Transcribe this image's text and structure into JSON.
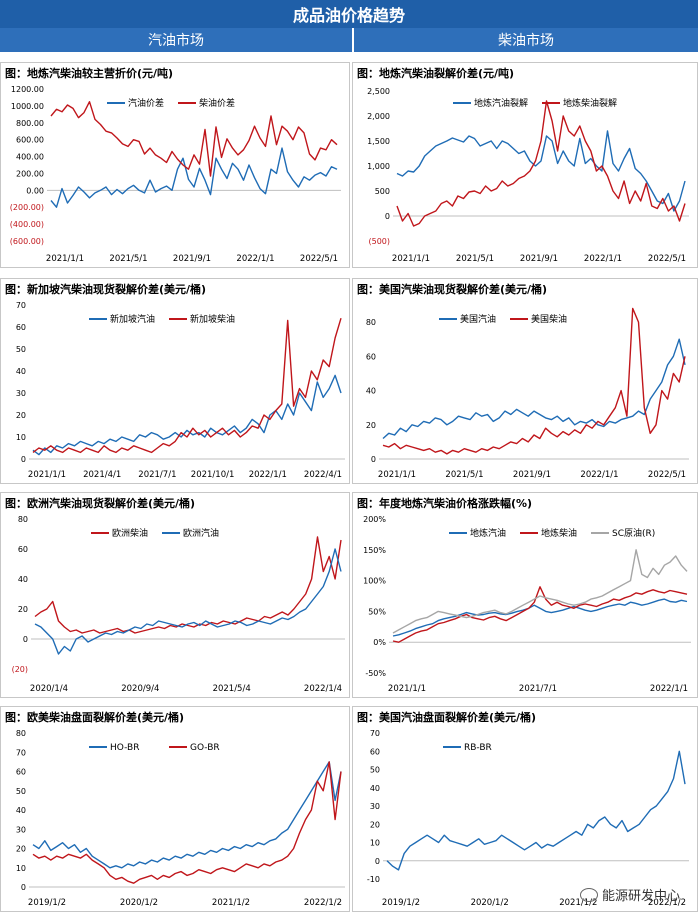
{
  "header": {
    "title": "成品油价格趋势",
    "left_column": "汽油市场",
    "right_column": "柴油市场"
  },
  "colors": {
    "banner": "#1f5fa8",
    "subheader": "#2e6fba",
    "blue": "#1f6cb5",
    "red": "#c0161b",
    "gray": "#a6a6a6"
  },
  "watermark": "能源研发中心",
  "chart_data": [
    {
      "type": "line",
      "title": "图：地炼汽柴油较主营折价(元/吨)",
      "x_ticks": [
        "2021/1/1",
        "2021/5/1",
        "2021/9/1",
        "2022/1/1",
        "2022/5/1"
      ],
      "y_ticks": [
        "1200.00",
        "1000.00",
        "800.00",
        "600.00",
        "400.00",
        "200.00",
        "0.00",
        "(200.00)",
        "(400.00)",
        "(600.00)"
      ],
      "ylim": [
        -600,
        1200
      ],
      "legend": "top",
      "series": [
        {
          "name": "汽油价差",
          "color": "#1f6cb5",
          "values": [
            -120,
            -200,
            20,
            -150,
            -60,
            40,
            -20,
            -90,
            -30,
            0,
            40,
            -50,
            10,
            -40,
            20,
            60,
            0,
            -30,
            120,
            -20,
            20,
            50,
            0,
            250,
            380,
            130,
            40,
            260,
            120,
            -50,
            380,
            250,
            140,
            320,
            250,
            120,
            300,
            150,
            20,
            -40,
            250,
            200,
            500,
            220,
            120,
            40,
            160,
            120,
            180,
            210,
            170,
            280,
            250
          ]
        },
        {
          "name": "柴油价差",
          "color": "#c0161b",
          "values": [
            880,
            960,
            930,
            1010,
            970,
            860,
            920,
            1050,
            840,
            780,
            700,
            680,
            620,
            550,
            520,
            600,
            580,
            430,
            500,
            420,
            380,
            330,
            460,
            370,
            300,
            250,
            420,
            310,
            720,
            170,
            750,
            390,
            610,
            500,
            420,
            480,
            590,
            760,
            620,
            520,
            880,
            540,
            760,
            700,
            600,
            750,
            680,
            430,
            360,
            500,
            480,
            600,
            540
          ]
        }
      ]
    },
    {
      "type": "line",
      "title": "图：地炼汽柴油裂解价差(元/吨)",
      "x_ticks": [
        "2021/1/1",
        "2021/5/1",
        "2021/9/1",
        "2022/1/1",
        "2022/5/1"
      ],
      "y_ticks": [
        "2,500",
        "2,000",
        "1,500",
        "1,000",
        "500",
        "0",
        "(500)"
      ],
      "ylim": [
        -500,
        2500
      ],
      "legend": "top",
      "series": [
        {
          "name": "地炼汽油裂解",
          "color": "#1f6cb5",
          "values": [
            850,
            800,
            900,
            880,
            1000,
            1200,
            1300,
            1400,
            1450,
            1500,
            1560,
            1520,
            1480,
            1600,
            1550,
            1400,
            1450,
            1500,
            1350,
            1500,
            1450,
            1350,
            1250,
            1300,
            1100,
            1000,
            1100,
            1600,
            1500,
            1050,
            1300,
            1100,
            1000,
            1550,
            1050,
            1150,
            1000,
            900,
            1700,
            1050,
            900,
            1150,
            1350,
            950,
            850,
            700,
            500,
            300,
            250,
            450,
            100,
            300,
            700
          ]
        },
        {
          "name": "地炼柴油裂解",
          "color": "#c0161b",
          "values": [
            200,
            -100,
            50,
            -200,
            -150,
            0,
            50,
            100,
            250,
            300,
            200,
            400,
            350,
            480,
            500,
            450,
            600,
            500,
            550,
            700,
            600,
            650,
            750,
            800,
            900,
            1100,
            1500,
            2300,
            1900,
            1300,
            2000,
            1700,
            1600,
            1800,
            1500,
            1300,
            900,
            1000,
            800,
            500,
            350,
            700,
            250,
            500,
            300,
            650,
            200,
            150,
            350,
            100,
            200,
            -100,
            250
          ]
        }
      ]
    },
    {
      "type": "line",
      "title": "图：新加坡汽柴油现货裂解价差(美元/桶)",
      "x_ticks": [
        "2021/1/1",
        "2021/4/1",
        "2021/7/1",
        "2021/10/1",
        "2022/1/1",
        "2022/4/1"
      ],
      "y_ticks": [
        "70",
        "60",
        "50",
        "40",
        "30",
        "20",
        "10",
        "0"
      ],
      "ylim": [
        0,
        70
      ],
      "legend": "top",
      "series": [
        {
          "name": "新加坡汽油",
          "color": "#1f6cb5",
          "values": [
            4,
            2,
            5,
            3,
            6,
            5,
            7,
            6,
            8,
            7,
            6,
            8,
            7,
            9,
            8,
            10,
            9,
            8,
            11,
            10,
            12,
            11,
            9,
            10,
            12,
            10,
            13,
            11,
            12,
            10,
            14,
            12,
            11,
            13,
            15,
            12,
            14,
            18,
            16,
            12,
            20,
            22,
            18,
            25,
            20,
            30,
            26,
            22,
            35,
            28,
            32,
            38,
            30
          ]
        },
        {
          "name": "新加坡柴油",
          "color": "#c0161b",
          "values": [
            3,
            5,
            4,
            6,
            4,
            3,
            5,
            4,
            3,
            5,
            4,
            3,
            6,
            4,
            3,
            5,
            4,
            6,
            5,
            4,
            3,
            5,
            7,
            6,
            8,
            12,
            10,
            14,
            11,
            13,
            10,
            12,
            14,
            11,
            13,
            10,
            12,
            15,
            14,
            20,
            18,
            22,
            25,
            63,
            24,
            32,
            28,
            40,
            36,
            45,
            42,
            55,
            64
          ]
        }
      ]
    },
    {
      "type": "line",
      "title": "图：美国汽柴油现货裂解价差(美元/桶)",
      "x_ticks": [
        "2021/1/1",
        "2021/5/1",
        "2021/9/1",
        "2022/1/1",
        "2022/5/1"
      ],
      "y_ticks": [
        "80",
        "60",
        "40",
        "20",
        "0"
      ],
      "ylim": [
        0,
        90
      ],
      "legend": "top",
      "series": [
        {
          "name": "美国汽油",
          "color": "#1f6cb5",
          "values": [
            12,
            15,
            14,
            18,
            16,
            20,
            19,
            22,
            21,
            24,
            23,
            20,
            22,
            25,
            24,
            23,
            27,
            25,
            26,
            22,
            24,
            28,
            26,
            29,
            27,
            25,
            28,
            26,
            24,
            23,
            25,
            22,
            24,
            20,
            22,
            21,
            23,
            20,
            19,
            22,
            21,
            23,
            24,
            25,
            28,
            26,
            35,
            40,
            45,
            55,
            60,
            70,
            55
          ]
        },
        {
          "name": "美国柴油",
          "color": "#c0161b",
          "values": [
            8,
            7,
            9,
            6,
            8,
            7,
            6,
            5,
            6,
            4,
            5,
            3,
            5,
            4,
            6,
            5,
            4,
            6,
            5,
            7,
            6,
            8,
            10,
            9,
            12,
            10,
            14,
            12,
            18,
            15,
            13,
            16,
            14,
            17,
            15,
            20,
            18,
            22,
            20,
            25,
            30,
            40,
            25,
            88,
            80,
            30,
            15,
            20,
            40,
            35,
            50,
            45,
            60
          ]
        }
      ]
    },
    {
      "type": "line",
      "title": "图：欧洲汽柴油现货裂解价差(美元/桶)",
      "x_ticks": [
        "2020/1/4",
        "2020/9/4",
        "2021/5/4",
        "2022/1/4"
      ],
      "y_ticks": [
        "80",
        "60",
        "40",
        "20",
        "0",
        "(20)"
      ],
      "ylim": [
        -20,
        80
      ],
      "legend": "top",
      "series": [
        {
          "name": "欧洲柴油",
          "color": "#c0161b",
          "values": [
            15,
            18,
            20,
            25,
            12,
            8,
            5,
            6,
            4,
            5,
            6,
            4,
            5,
            6,
            7,
            5,
            6,
            4,
            5,
            6,
            7,
            8,
            7,
            9,
            8,
            10,
            9,
            8,
            10,
            9,
            11,
            10,
            12,
            11,
            10,
            12,
            14,
            13,
            12,
            15,
            14,
            16,
            18,
            16,
            20,
            25,
            30,
            40,
            68,
            45,
            55,
            40,
            66
          ]
        },
        {
          "name": "欧洲汽油",
          "color": "#1f6cb5",
          "values": [
            10,
            8,
            4,
            0,
            -10,
            -5,
            -8,
            0,
            2,
            -2,
            0,
            2,
            4,
            3,
            5,
            4,
            6,
            8,
            7,
            10,
            9,
            12,
            11,
            10,
            9,
            8,
            10,
            11,
            9,
            12,
            10,
            8,
            9,
            10,
            12,
            11,
            9,
            10,
            12,
            11,
            10,
            12,
            14,
            13,
            15,
            18,
            20,
            25,
            30,
            35,
            45,
            60,
            45
          ]
        }
      ]
    },
    {
      "type": "line",
      "title": "图：年度地炼汽柴油价格涨跌幅(%)",
      "x_ticks": [
        "2021/1/1",
        "2021/7/1",
        "2022/1/1"
      ],
      "y_ticks": [
        "200%",
        "150%",
        "100%",
        "50%",
        "0%",
        "-50%"
      ],
      "ylim": [
        -50,
        200
      ],
      "legend": "top",
      "series": [
        {
          "name": "地炼汽油",
          "color": "#1f6cb5",
          "values": [
            10,
            12,
            15,
            18,
            22,
            25,
            28,
            30,
            35,
            38,
            40,
            42,
            45,
            48,
            46,
            44,
            45,
            47,
            48,
            46,
            45,
            47,
            50,
            52,
            55,
            60,
            55,
            50,
            48,
            50,
            52,
            55,
            58,
            55,
            52,
            50,
            52,
            55,
            58,
            60,
            62,
            60,
            65,
            63,
            60,
            62,
            65,
            68,
            70,
            66,
            65,
            68,
            66
          ]
        },
        {
          "name": "地炼柴油",
          "color": "#c0161b",
          "values": [
            2,
            0,
            5,
            10,
            15,
            18,
            20,
            25,
            30,
            32,
            35,
            38,
            42,
            45,
            40,
            38,
            36,
            40,
            42,
            38,
            35,
            40,
            45,
            50,
            55,
            65,
            90,
            70,
            60,
            65,
            60,
            58,
            55,
            60,
            62,
            60,
            58,
            62,
            65,
            70,
            68,
            72,
            75,
            80,
            78,
            82,
            85,
            82,
            80,
            84,
            82,
            80,
            78
          ]
        },
        {
          "name": "SC原油(R)",
          "color": "#a6a6a6",
          "values": [
            15,
            20,
            25,
            30,
            35,
            38,
            40,
            45,
            50,
            48,
            46,
            44,
            42,
            40,
            42,
            45,
            48,
            50,
            52,
            48,
            46,
            50,
            55,
            60,
            65,
            70,
            75,
            72,
            70,
            68,
            65,
            62,
            60,
            62,
            65,
            70,
            72,
            75,
            80,
            85,
            90,
            95,
            100,
            150,
            110,
            105,
            120,
            110,
            125,
            130,
            140,
            125,
            115
          ]
        }
      ]
    },
    {
      "type": "line",
      "title": "图：欧美柴油盘面裂解价差(美元/桶)",
      "x_ticks": [
        "2019/1/2",
        "2020/1/2",
        "2021/1/2",
        "2022/1/2"
      ],
      "y_ticks": [
        "80",
        "70",
        "60",
        "50",
        "40",
        "30",
        "20",
        "10",
        "0"
      ],
      "ylim": [
        0,
        80
      ],
      "legend": "top",
      "series": [
        {
          "name": "HO-BR",
          "color": "#1f6cb5",
          "values": [
            22,
            20,
            24,
            19,
            21,
            23,
            20,
            22,
            18,
            20,
            16,
            14,
            12,
            10,
            11,
            10,
            12,
            11,
            13,
            12,
            14,
            13,
            15,
            14,
            16,
            15,
            17,
            16,
            18,
            17,
            19,
            18,
            20,
            19,
            21,
            20,
            22,
            21,
            23,
            22,
            24,
            25,
            28,
            30,
            35,
            40,
            45,
            50,
            55,
            60,
            65,
            45,
            60
          ]
        },
        {
          "name": "GO-BR",
          "color": "#c0161b",
          "values": [
            17,
            15,
            16,
            14,
            16,
            15,
            17,
            16,
            15,
            17,
            14,
            12,
            10,
            6,
            4,
            5,
            3,
            2,
            4,
            5,
            6,
            4,
            6,
            5,
            7,
            8,
            6,
            7,
            9,
            8,
            7,
            9,
            10,
            9,
            8,
            10,
            12,
            11,
            10,
            12,
            11,
            13,
            14,
            16,
            20,
            28,
            35,
            40,
            55,
            50,
            65,
            35,
            60
          ]
        }
      ]
    },
    {
      "type": "line",
      "title": "图：美国汽油盘面裂解价差(美元/桶)",
      "x_ticks": [
        "2019/1/2",
        "2020/1/2",
        "2021/1/2",
        "2022/1/2"
      ],
      "y_ticks": [
        "70",
        "60",
        "50",
        "40",
        "30",
        "20",
        "10",
        "0",
        "-10"
      ],
      "ylim": [
        -10,
        70
      ],
      "legend": "top",
      "series": [
        {
          "name": "RB-BR",
          "color": "#1f6cb5",
          "values": [
            0,
            -3,
            -5,
            4,
            8,
            10,
            12,
            14,
            12,
            10,
            14,
            11,
            10,
            9,
            8,
            10,
            12,
            9,
            10,
            11,
            14,
            12,
            10,
            8,
            6,
            8,
            10,
            7,
            9,
            8,
            10,
            12,
            14,
            16,
            14,
            20,
            18,
            22,
            24,
            20,
            18,
            22,
            16,
            18,
            20,
            24,
            28,
            30,
            34,
            38,
            45,
            60,
            42
          ]
        }
      ]
    }
  ]
}
